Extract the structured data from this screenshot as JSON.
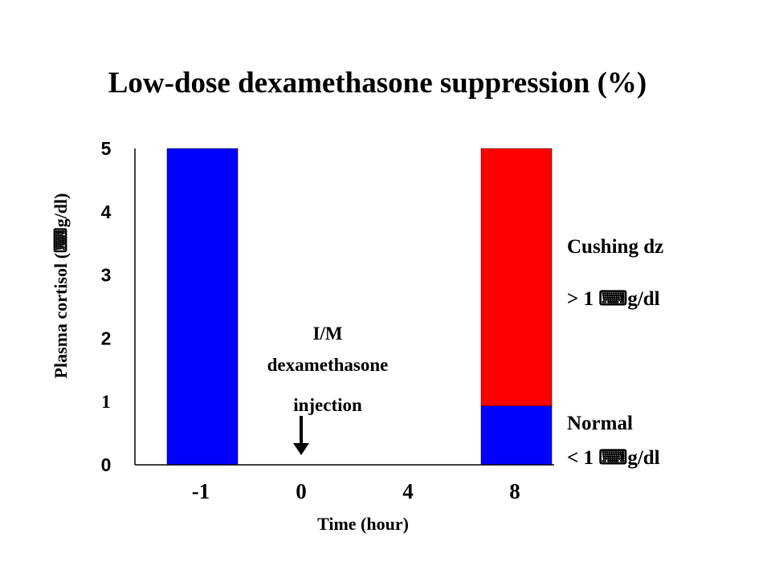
{
  "chart_data": {
    "type": "bar",
    "title": "Low-dose dexamethasone suppression (%)",
    "xlabel": "Time (hour)",
    "ylabel": "Plasma cortisol (⌨g/dl)",
    "categories": [
      "-1",
      "0",
      "4",
      "8"
    ],
    "y_ticks": [
      "0",
      "1",
      "2",
      "3",
      "4",
      "5"
    ],
    "ylim": [
      0,
      5
    ],
    "series": [
      {
        "values": [
          5,
          0,
          0,
          0.93
        ],
        "color": "#0000ff"
      },
      {
        "values": [
          0,
          0,
          0,
          4.07
        ],
        "color": "#ff0000"
      }
    ],
    "stacked": true,
    "annotation": {
      "lines": [
        "I/M",
        "dexamethasone",
        "injection"
      ],
      "at_category": "0"
    },
    "side_labels": {
      "cushing": "Cushing dz",
      "cushing_value": "> 1 ⌨g/dl",
      "normal": "Normal",
      "normal_value": "< 1 ⌨g/dl"
    },
    "grid": false
  }
}
